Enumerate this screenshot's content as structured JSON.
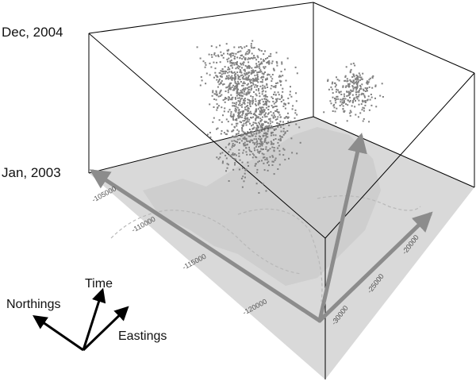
{
  "chart_data": {
    "type": "scatter",
    "title": "",
    "time_axis": {
      "label": "Time",
      "ticks": [
        "Jan, 2003",
        "Dec, 2004"
      ],
      "range": [
        "2003-01",
        "2004-12"
      ]
    },
    "northings_axis": {
      "label": "Northings",
      "ticks": [
        "-105000",
        "-110000",
        "-115000",
        "-120000"
      ]
    },
    "eastings_axis": {
      "label": "Eastings",
      "ticks": [
        "-30000",
        "-25000",
        "-20000"
      ]
    },
    "points": {
      "description": "",
      "count": 1500,
      "color": "#808080",
      "marker_size": 2
    },
    "base_map_color": "#d9d9d9",
    "bounding_box": true,
    "axis_arrow_color": "#8c8c8c",
    "grid": false
  },
  "legend_arrows": [
    "Northings",
    "Time",
    "Eastings"
  ]
}
